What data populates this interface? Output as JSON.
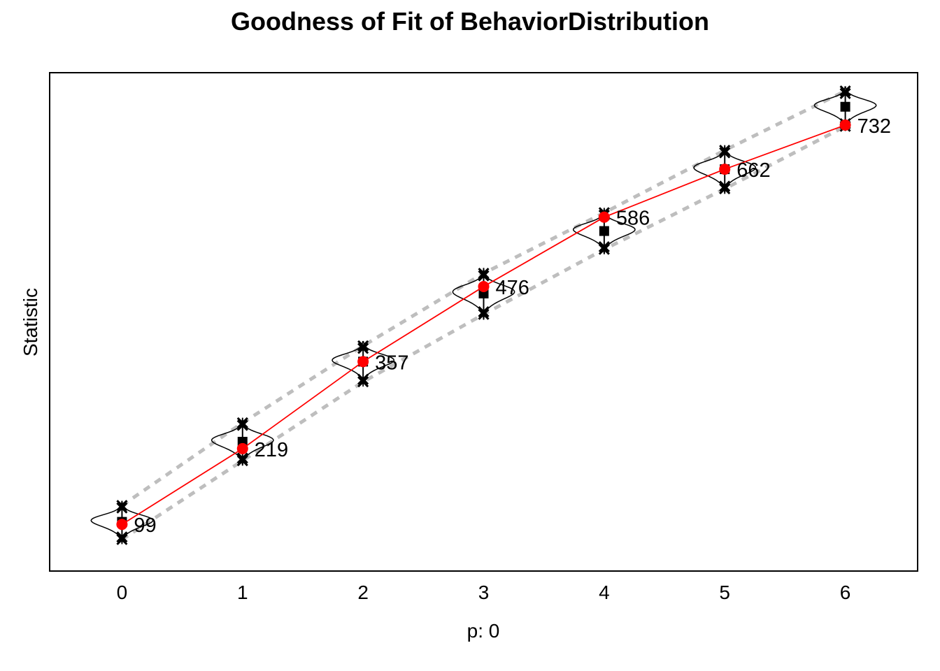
{
  "chart_data": {
    "type": "line",
    "title": "Goodness of Fit of BehaviorDistribution",
    "xlabel": "p: 0",
    "ylabel": "Statistic",
    "x": [
      0,
      1,
      2,
      3,
      4,
      5,
      6
    ],
    "x_tick_labels": [
      "0",
      "1",
      "2",
      "3",
      "4",
      "5",
      "6"
    ],
    "ylim": [
      25,
      815
    ],
    "observed": {
      "values": [
        99,
        219,
        357,
        476,
        586,
        662,
        732
      ],
      "labels": [
        "99",
        "219",
        "357",
        "476",
        "586",
        "662",
        "732"
      ],
      "color": "#ff0000"
    },
    "simulated_median": [
      103,
      230,
      357,
      465,
      564,
      662,
      761
    ],
    "band_upper": [
      129,
      260,
      382,
      497,
      593,
      692,
      786
    ],
    "band_lower": [
      75,
      200,
      325,
      432,
      535,
      631,
      730
    ],
    "band_color": "#bebebe",
    "violin_half_width": 0.25,
    "grid": false,
    "legend": "none"
  }
}
